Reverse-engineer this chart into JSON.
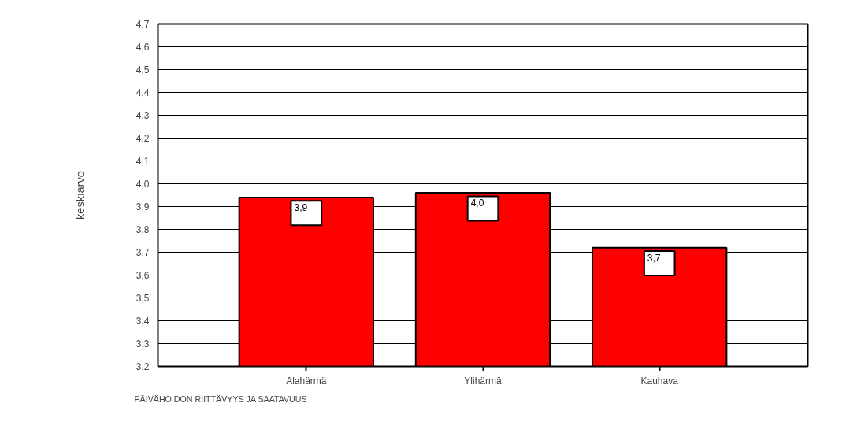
{
  "chart_data": {
    "type": "bar",
    "xlabel": "PÄIVÄHOIDON RIITTÄVYYS JA SAATAVUUS",
    "ylabel": "keskiarvo",
    "categories": [
      "Alahärmä",
      "Ylihärmä",
      "Kauhava"
    ],
    "values": [
      3.94,
      3.96,
      3.72
    ],
    "color": "#ff0000",
    "value_labels": [
      "3,9",
      "4,0",
      "3,7"
    ],
    "ylim": [
      3.2,
      4.7
    ],
    "yticks": [
      {
        "value": 3.2,
        "label": "3,2"
      },
      {
        "value": 3.3,
        "label": "3,3"
      },
      {
        "value": 3.4,
        "label": "3,4"
      },
      {
        "value": 3.5,
        "label": "3,5"
      },
      {
        "value": 3.6,
        "label": "3,6"
      },
      {
        "value": 3.7,
        "label": "3,7"
      },
      {
        "value": 3.8,
        "label": "3,8"
      },
      {
        "value": 3.9,
        "label": "3,9"
      },
      {
        "value": 4.0,
        "label": "4,0"
      },
      {
        "value": 4.1,
        "label": "4,1"
      },
      {
        "value": 4.2,
        "label": "4,2"
      },
      {
        "value": 4.3,
        "label": "4,3"
      },
      {
        "value": 4.4,
        "label": "4,4"
      },
      {
        "value": 4.5,
        "label": "4,5"
      },
      {
        "value": 4.6,
        "label": "4,6"
      },
      {
        "value": 4.7,
        "label": "4,7"
      }
    ],
    "grid": "y"
  }
}
